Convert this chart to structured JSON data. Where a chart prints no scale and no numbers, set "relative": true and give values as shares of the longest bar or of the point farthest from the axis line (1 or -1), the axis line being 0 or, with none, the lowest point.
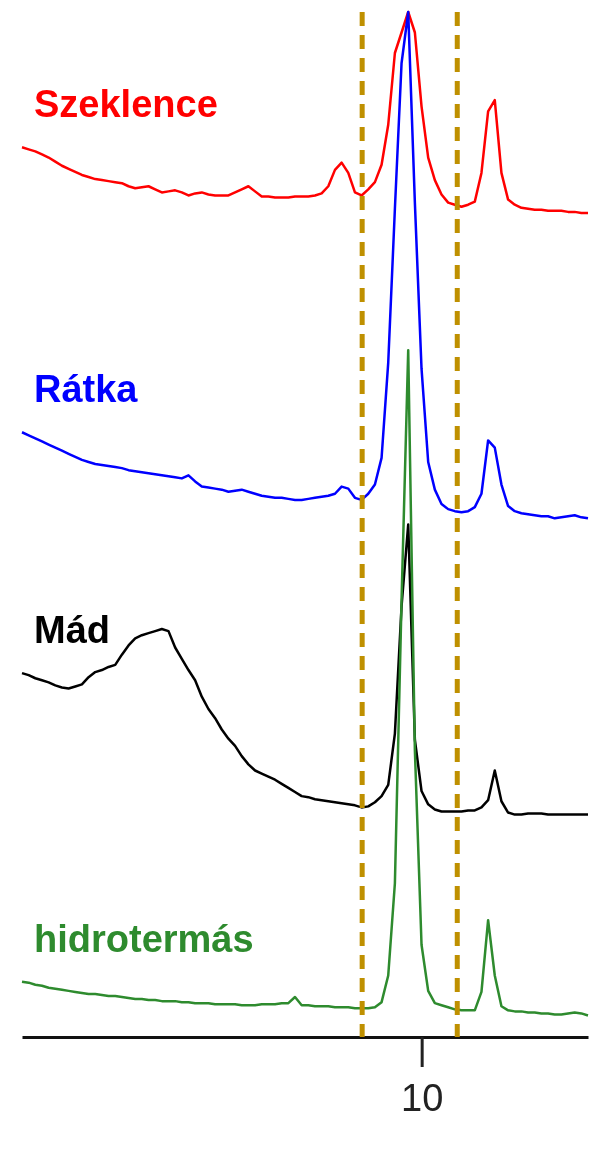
{
  "chart_data": {
    "type": "line",
    "relative": true,
    "legend": false,
    "marker": "none",
    "line_style": "solid",
    "categories": [
      null,
      null,
      null,
      null,
      null,
      null,
      null,
      null,
      null,
      null,
      null,
      null,
      null,
      null,
      null,
      null,
      null,
      null,
      null,
      null,
      null,
      null,
      null,
      null,
      null,
      null,
      null,
      null,
      null,
      null,
      null,
      null,
      null,
      null,
      null,
      null,
      null,
      null,
      null,
      null,
      null,
      null,
      null,
      null,
      null,
      null,
      null,
      null,
      null,
      null,
      null,
      null,
      null,
      null,
      null,
      null,
      null,
      null,
      null,
      null,
      null,
      null,
      null,
      null,
      null,
      null,
      null,
      null,
      null,
      null,
      null,
      null,
      null,
      null,
      null,
      null,
      null,
      null,
      null,
      null,
      null,
      null,
      null,
      null,
      null,
      null
    ],
    "annotations": [
      "10"
    ],
    "series": [
      {
        "name": "Szeklence",
        "color": "#ff0000",
        "values": [
          0.868,
          0.866,
          0.864,
          0.861,
          0.858,
          0.854,
          0.85,
          0.847,
          0.844,
          0.841,
          0.839,
          0.837,
          0.836,
          0.835,
          0.834,
          0.833,
          0.83,
          0.828,
          0.829,
          0.83,
          0.827,
          0.824,
          0.825,
          0.826,
          0.824,
          0.821,
          0.823,
          0.824,
          0.822,
          0.821,
          0.821,
          0.821,
          0.824,
          0.827,
          0.83,
          0.825,
          0.82,
          0.82,
          0.819,
          0.819,
          0.819,
          0.82,
          0.82,
          0.82,
          0.821,
          0.823,
          0.83,
          0.846,
          0.853,
          0.843,
          0.824,
          0.821,
          0.827,
          0.834,
          0.851,
          0.89,
          0.96,
          0.98,
          1.0,
          0.98,
          0.908,
          0.858,
          0.836,
          0.822,
          0.814,
          0.812,
          0.81,
          0.812,
          0.815,
          0.843,
          0.903,
          0.914,
          0.843,
          0.817,
          0.812,
          0.809,
          0.808,
          0.807,
          0.807,
          0.806,
          0.806,
          0.806,
          0.805,
          0.805,
          0.804,
          0.804
        ]
      },
      {
        "name": "Rátka",
        "color": "#0000ff",
        "values": [
          0.59,
          0.587,
          0.584,
          0.581,
          0.578,
          0.575,
          0.572,
          0.569,
          0.566,
          0.563,
          0.561,
          0.559,
          0.558,
          0.557,
          0.556,
          0.555,
          0.553,
          0.552,
          0.551,
          0.55,
          0.549,
          0.548,
          0.547,
          0.546,
          0.545,
          0.548,
          0.542,
          0.537,
          0.536,
          0.535,
          0.534,
          0.532,
          0.533,
          0.534,
          0.532,
          0.53,
          0.528,
          0.527,
          0.526,
          0.526,
          0.525,
          0.524,
          0.524,
          0.525,
          0.526,
          0.527,
          0.528,
          0.53,
          0.537,
          0.535,
          0.526,
          0.524,
          0.53,
          0.539,
          0.565,
          0.658,
          0.808,
          0.95,
          1.0,
          0.814,
          0.652,
          0.561,
          0.534,
          0.52,
          0.515,
          0.513,
          0.512,
          0.513,
          0.517,
          0.53,
          0.582,
          0.575,
          0.539,
          0.518,
          0.513,
          0.511,
          0.51,
          0.509,
          0.508,
          0.508,
          0.506,
          0.507,
          0.508,
          0.509,
          0.507,
          0.506
        ]
      },
      {
        "name": "Mád",
        "color": "#000000",
        "values": [
          0.355,
          0.353,
          0.35,
          0.348,
          0.346,
          0.343,
          0.341,
          0.34,
          0.342,
          0.344,
          0.351,
          0.356,
          0.358,
          0.361,
          0.363,
          0.373,
          0.382,
          0.389,
          0.392,
          0.394,
          0.396,
          0.398,
          0.396,
          0.38,
          0.369,
          0.358,
          0.348,
          0.332,
          0.32,
          0.311,
          0.3,
          0.291,
          0.284,
          0.274,
          0.266,
          0.26,
          0.257,
          0.254,
          0.251,
          0.247,
          0.243,
          0.239,
          0.235,
          0.234,
          0.232,
          0.231,
          0.23,
          0.229,
          0.228,
          0.227,
          0.226,
          0.224,
          0.225,
          0.229,
          0.235,
          0.246,
          0.296,
          0.42,
          0.5,
          0.29,
          0.24,
          0.227,
          0.222,
          0.22,
          0.22,
          0.22,
          0.22,
          0.221,
          0.221,
          0.224,
          0.231,
          0.26,
          0.23,
          0.219,
          0.217,
          0.217,
          0.218,
          0.218,
          0.218,
          0.217,
          0.217,
          0.217,
          0.217,
          0.217,
          0.217,
          0.217
        ]
      },
      {
        "name": "hidrotermás",
        "color": "#2e8b2e",
        "values": [
          0.054,
          0.053,
          0.051,
          0.05,
          0.048,
          0.047,
          0.046,
          0.045,
          0.044,
          0.043,
          0.042,
          0.042,
          0.041,
          0.04,
          0.04,
          0.039,
          0.038,
          0.037,
          0.037,
          0.036,
          0.036,
          0.035,
          0.035,
          0.035,
          0.034,
          0.034,
          0.033,
          0.033,
          0.033,
          0.032,
          0.032,
          0.032,
          0.032,
          0.031,
          0.031,
          0.031,
          0.032,
          0.032,
          0.032,
          0.033,
          0.033,
          0.039,
          0.031,
          0.031,
          0.03,
          0.03,
          0.03,
          0.029,
          0.029,
          0.029,
          0.028,
          0.028,
          0.028,
          0.029,
          0.034,
          0.06,
          0.15,
          0.426,
          0.67,
          0.28,
          0.09,
          0.045,
          0.033,
          0.031,
          0.029,
          0.027,
          0.026,
          0.026,
          0.026,
          0.044,
          0.114,
          0.06,
          0.03,
          0.026,
          0.025,
          0.025,
          0.024,
          0.024,
          0.023,
          0.023,
          0.022,
          0.022,
          0.023,
          0.024,
          0.023,
          0.021
        ]
      }
    ]
  }
}
